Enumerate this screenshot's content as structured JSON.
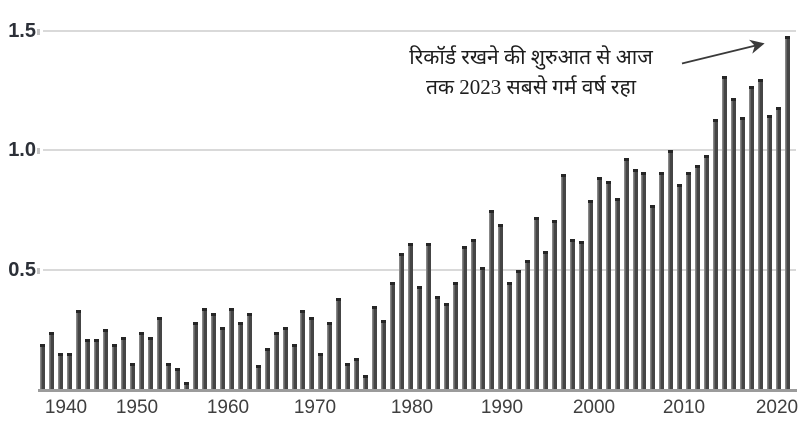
{
  "chart_data": {
    "type": "bar",
    "title": "",
    "xlabel": "",
    "ylabel": "",
    "ylim": [
      0,
      1.55
    ],
    "grid": true,
    "legend": false,
    "bar_color": "#454545",
    "gridline_color": "#d9d9d9",
    "y_tick_values": [
      0.5,
      1.0,
      1.5
    ],
    "y_tick_labels": [
      "0.5",
      "1.0",
      "1.5"
    ],
    "x_tick_labels": [
      "1940",
      "1950",
      "1960",
      "1970",
      "1980",
      "1990",
      "2000",
      "2010",
      "2020"
    ],
    "years": [
      1940,
      1941,
      1942,
      1943,
      1944,
      1945,
      1946,
      1947,
      1948,
      1949,
      1950,
      1951,
      1952,
      1953,
      1954,
      1955,
      1956,
      1957,
      1958,
      1959,
      1960,
      1961,
      1962,
      1963,
      1964,
      1965,
      1966,
      1967,
      1968,
      1969,
      1970,
      1971,
      1972,
      1973,
      1974,
      1975,
      1976,
      1977,
      1978,
      1979,
      1980,
      1981,
      1982,
      1983,
      1984,
      1985,
      1986,
      1987,
      1988,
      1989,
      1990,
      1991,
      1992,
      1993,
      1994,
      1995,
      1996,
      1997,
      1998,
      1999,
      2000,
      2001,
      2002,
      2003,
      2004,
      2005,
      2006,
      2007,
      2008,
      2009,
      2010,
      2011,
      2012,
      2013,
      2014,
      2015,
      2016,
      2017,
      2018,
      2019,
      2020,
      2021,
      2022,
      2023
    ],
    "values": [
      0.19,
      0.24,
      0.15,
      0.15,
      0.33,
      0.21,
      0.21,
      0.25,
      0.19,
      0.22,
      0.11,
      0.24,
      0.22,
      0.3,
      0.11,
      0.09,
      0.03,
      0.28,
      0.34,
      0.32,
      0.26,
      0.34,
      0.28,
      0.32,
      0.1,
      0.17,
      0.24,
      0.26,
      0.19,
      0.33,
      0.3,
      0.15,
      0.28,
      0.38,
      0.11,
      0.13,
      0.06,
      0.35,
      0.29,
      0.45,
      0.57,
      0.61,
      0.43,
      0.61,
      0.39,
      0.36,
      0.45,
      0.6,
      0.63,
      0.51,
      0.75,
      0.69,
      0.45,
      0.5,
      0.54,
      0.72,
      0.58,
      0.71,
      0.9,
      0.63,
      0.62,
      0.79,
      0.89,
      0.87,
      0.8,
      0.97,
      0.92,
      0.91,
      0.77,
      0.91,
      1.0,
      0.86,
      0.91,
      0.94,
      0.98,
      1.13,
      1.31,
      1.22,
      1.14,
      1.27,
      1.3,
      1.15,
      1.18,
      1.48
    ],
    "annotation": {
      "line1": "रिकॉर्ड रखने की शुरुआत से आज",
      "line2": "तक 2023 सबसे गर्म वर्ष रहा",
      "points_to_year": 2023
    }
  }
}
